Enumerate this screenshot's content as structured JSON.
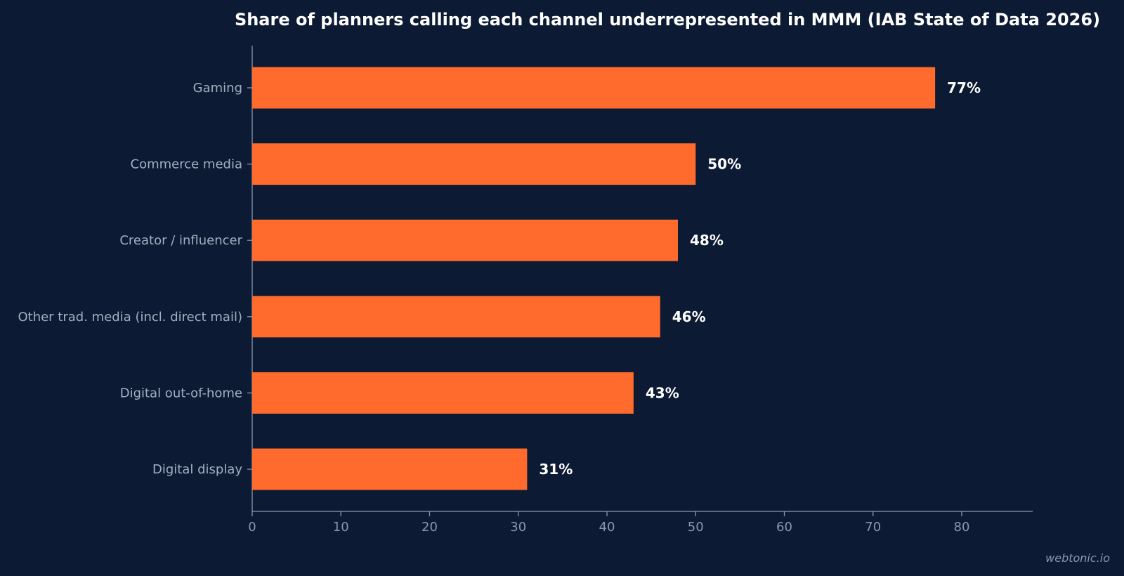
{
  "chart_data": {
    "type": "bar",
    "orientation": "horizontal",
    "title": "Share of planners calling each channel underrepresented in MMM (IAB State of Data 2026)",
    "categories": [
      "Gaming",
      "Commerce media",
      "Creator / influencer",
      "Other trad. media (incl. direct mail)",
      "Digital out-of-home",
      "Digital display"
    ],
    "values": [
      77,
      50,
      48,
      46,
      43,
      31
    ],
    "value_labels": [
      "77%",
      "50%",
      "48%",
      "46%",
      "43%",
      "31%"
    ],
    "xlim": [
      0,
      88
    ],
    "xticks": [
      0,
      10,
      20,
      30,
      40,
      50,
      60,
      70,
      80
    ],
    "xtick_labels": [
      "0",
      "10",
      "20",
      "30",
      "40",
      "50",
      "60",
      "70",
      "80"
    ],
    "xlabel": "",
    "ylabel": "",
    "grid": false,
    "legend": "none",
    "colors": {
      "bar": "#ff6b2c",
      "background": "#0c1a33",
      "axis": "#8a97ab",
      "category_label": "#a3afc0",
      "value_label": "#ffffff",
      "title": "#ffffff"
    }
  },
  "watermark": "webtonic.io"
}
